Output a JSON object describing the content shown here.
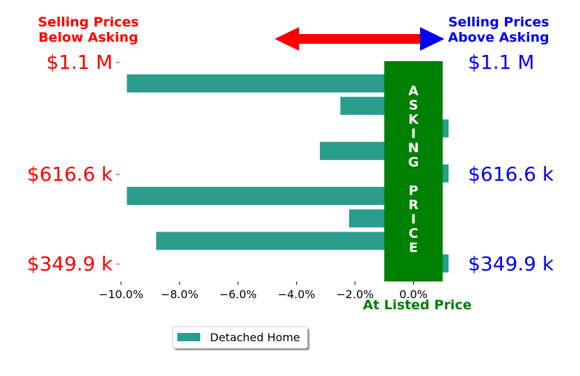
{
  "header": {
    "below_line1": "Selling Prices",
    "below_line2": "Below Asking",
    "above_line1": "Selling Prices",
    "above_line2": "Above Asking",
    "at_listed": "At Listed Price",
    "asking_price_vertical": [
      "A",
      "S",
      "K",
      "I",
      "N",
      "G",
      "",
      "P",
      "R",
      "I",
      "C",
      "E"
    ]
  },
  "colors": {
    "below": "#ff0000",
    "above": "#0000ee",
    "bar": "#2a9d8f",
    "asking_band": "#008000",
    "listed": "#008000"
  },
  "chart_data": {
    "type": "bar",
    "orientation": "horizontal",
    "series": [
      {
        "name": "Detached Home",
        "values": [
          -9.8,
          -2.5,
          1.2,
          -3.2,
          1.2,
          -9.8,
          -2.2,
          -8.8,
          1.2
        ]
      }
    ],
    "xlim": [
      -10.5,
      1.2
    ],
    "xticks": [
      -10.0,
      -8.0,
      -6.0,
      -4.0,
      -2.0,
      0.0
    ],
    "xtick_labels": [
      "−10.0%",
      "−8.0%",
      "−6.0%",
      "−4.0%",
      "−2.0%",
      "0.0%"
    ],
    "y_labels_left": [
      "$1.1 M",
      "$616.6 k",
      "$349.9 k"
    ],
    "y_labels_right": [
      "$1.1 M",
      "$616.6 k",
      "$349.9 k"
    ],
    "asking_band_range": [
      -1.0,
      1.0
    ],
    "legend": {
      "label": "Detached Home",
      "position": "bottom-center"
    }
  }
}
